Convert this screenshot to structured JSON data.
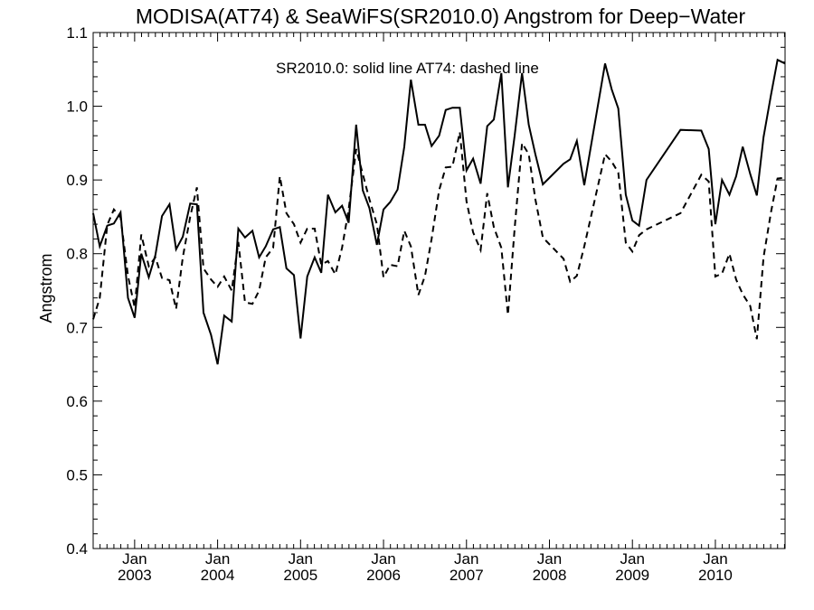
{
  "chart_data": {
    "type": "line",
    "title": "MODISA(AT74) & SeaWiFS(SR2010.0)  Angstrom for Deep−Water",
    "ylabel": "Angstrom",
    "xlabel": "",
    "annotation": "SR2010.0: solid line   AT74: dashed line",
    "ylim": [
      0.4,
      1.1
    ],
    "xlim": [
      2002.54,
      2010.88
    ],
    "yticks": [
      {
        "value": 0.4,
        "label": "0.4"
      },
      {
        "value": 0.5,
        "label": "0.5"
      },
      {
        "value": 0.6,
        "label": "0.6"
      },
      {
        "value": 0.7,
        "label": "0.7"
      },
      {
        "value": 0.8,
        "label": "0.8"
      },
      {
        "value": 0.9,
        "label": "0.9"
      },
      {
        "value": 1.0,
        "label": "1.0"
      },
      {
        "value": 1.1,
        "label": "1.1"
      }
    ],
    "xticks": [
      {
        "value": 2003.04,
        "label": "Jan",
        "year": "2003"
      },
      {
        "value": 2004.04,
        "label": "Jan",
        "year": "2004"
      },
      {
        "value": 2005.04,
        "label": "Jan",
        "year": "2005"
      },
      {
        "value": 2006.04,
        "label": "Jan",
        "year": "2006"
      },
      {
        "value": 2007.04,
        "label": "Jan",
        "year": "2007"
      },
      {
        "value": 2008.04,
        "label": "Jan",
        "year": "2008"
      },
      {
        "value": 2009.04,
        "label": "Jan",
        "year": "2009"
      },
      {
        "value": 2010.04,
        "label": "Jan",
        "year": "2010"
      }
    ],
    "grid": false,
    "series": [
      {
        "style": "solid",
        "color": "#000000",
        "x": [
          2002.54,
          2002.62,
          2002.71,
          2002.79,
          2002.87,
          2002.96,
          2003.04,
          2003.12,
          2003.21,
          2003.29,
          2003.37,
          2003.46,
          2003.54,
          2003.62,
          2003.71,
          2003.79,
          2003.87,
          2003.96,
          2004.04,
          2004.12,
          2004.21,
          2004.29,
          2004.37,
          2004.46,
          2004.54,
          2004.62,
          2004.71,
          2004.79,
          2004.87,
          2004.96,
          2005.04,
          2005.12,
          2005.21,
          2005.29,
          2005.37,
          2005.46,
          2005.54,
          2005.62,
          2005.71,
          2005.79,
          2005.87,
          2005.96,
          2006.04,
          2006.12,
          2006.21,
          2006.29,
          2006.37,
          2006.46,
          2006.54,
          2006.62,
          2006.71,
          2006.79,
          2006.87,
          2006.96,
          2007.04,
          2007.12,
          2007.21,
          2007.29,
          2007.37,
          2007.46,
          2007.54,
          2007.62,
          2007.71,
          2007.79,
          2007.87,
          2007.96,
          2008.21,
          2008.29,
          2008.37,
          2008.46,
          2008.71,
          2008.79,
          2008.87,
          2008.96,
          2009.04,
          2009.12,
          2009.21,
          2009.62,
          2009.87,
          2009.96,
          2010.04,
          2010.12,
          2010.21,
          2010.29,
          2010.37,
          2010.46,
          2010.54,
          2010.62,
          2010.71,
          2010.79,
          2010.88
        ],
        "y": [
          0.855,
          0.81,
          0.838,
          0.841,
          0.856,
          0.74,
          0.713,
          0.8,
          0.768,
          0.798,
          0.851,
          0.867,
          0.806,
          0.823,
          0.868,
          0.867,
          0.72,
          0.69,
          0.65,
          0.716,
          0.708,
          0.834,
          0.822,
          0.831,
          0.795,
          0.81,
          0.833,
          0.836,
          0.78,
          0.771,
          0.685,
          0.769,
          0.795,
          0.774,
          0.88,
          0.856,
          0.865,
          0.842,
          0.975,
          0.886,
          0.862,
          0.812,
          0.86,
          0.87,
          0.887,
          0.945,
          1.036,
          0.975,
          0.975,
          0.946,
          0.96,
          0.995,
          0.998,
          0.998,
          0.913,
          0.929,
          0.895,
          0.973,
          0.982,
          1.045,
          0.89,
          0.96,
          1.045,
          0.975,
          0.935,
          0.894,
          0.922,
          0.928,
          0.953,
          0.893,
          1.058,
          1.023,
          0.997,
          0.88,
          0.845,
          0.838,
          0.9,
          0.968,
          0.967,
          0.942,
          0.84,
          0.9,
          0.88,
          0.905,
          0.945,
          0.908,
          0.879,
          0.958,
          1.015,
          1.063,
          1.058
        ]
      },
      {
        "style": "dashed",
        "color": "#000000",
        "x": [
          2002.54,
          2002.62,
          2002.71,
          2002.79,
          2002.87,
          2002.96,
          2003.04,
          2003.12,
          2003.21,
          2003.29,
          2003.37,
          2003.46,
          2003.54,
          2003.62,
          2003.71,
          2003.79,
          2003.87,
          2003.96,
          2004.04,
          2004.12,
          2004.21,
          2004.29,
          2004.37,
          2004.46,
          2004.54,
          2004.62,
          2004.71,
          2004.79,
          2004.87,
          2004.96,
          2005.04,
          2005.12,
          2005.21,
          2005.29,
          2005.37,
          2005.46,
          2005.54,
          2005.62,
          2005.71,
          2005.79,
          2005.87,
          2005.96,
          2006.04,
          2006.12,
          2006.21,
          2006.29,
          2006.37,
          2006.46,
          2006.54,
          2006.62,
          2006.71,
          2006.79,
          2006.87,
          2006.96,
          2007.04,
          2007.12,
          2007.21,
          2007.29,
          2007.37,
          2007.46,
          2007.54,
          2007.62,
          2007.71,
          2007.79,
          2007.87,
          2007.96,
          2008.21,
          2008.29,
          2008.37,
          2008.46,
          2008.71,
          2008.79,
          2008.87,
          2008.96,
          2009.04,
          2009.12,
          2009.21,
          2009.62,
          2009.87,
          2009.96,
          2010.04,
          2010.12,
          2010.21,
          2010.29,
          2010.37,
          2010.46,
          2010.54,
          2010.62,
          2010.71,
          2010.79,
          2010.88
        ],
        "y": [
          0.711,
          0.74,
          0.839,
          0.86,
          0.849,
          0.77,
          0.727,
          0.826,
          0.783,
          0.795,
          0.767,
          0.764,
          0.725,
          0.795,
          0.85,
          0.89,
          0.78,
          0.765,
          0.755,
          0.769,
          0.75,
          0.816,
          0.734,
          0.732,
          0.75,
          0.795,
          0.808,
          0.905,
          0.855,
          0.84,
          0.815,
          0.834,
          0.834,
          0.785,
          0.79,
          0.772,
          0.808,
          0.86,
          0.942,
          0.908,
          0.874,
          0.84,
          0.768,
          0.785,
          0.783,
          0.831,
          0.81,
          0.744,
          0.77,
          0.82,
          0.886,
          0.917,
          0.918,
          0.965,
          0.871,
          0.829,
          0.805,
          0.882,
          0.836,
          0.808,
          0.717,
          0.834,
          0.95,
          0.935,
          0.874,
          0.822,
          0.793,
          0.762,
          0.77,
          0.81,
          0.935,
          0.925,
          0.91,
          0.815,
          0.803,
          0.825,
          0.833,
          0.855,
          0.907,
          0.898,
          0.769,
          0.773,
          0.8,
          0.765,
          0.745,
          0.729,
          0.684,
          0.795,
          0.856,
          0.902,
          0.903
        ]
      }
    ]
  }
}
